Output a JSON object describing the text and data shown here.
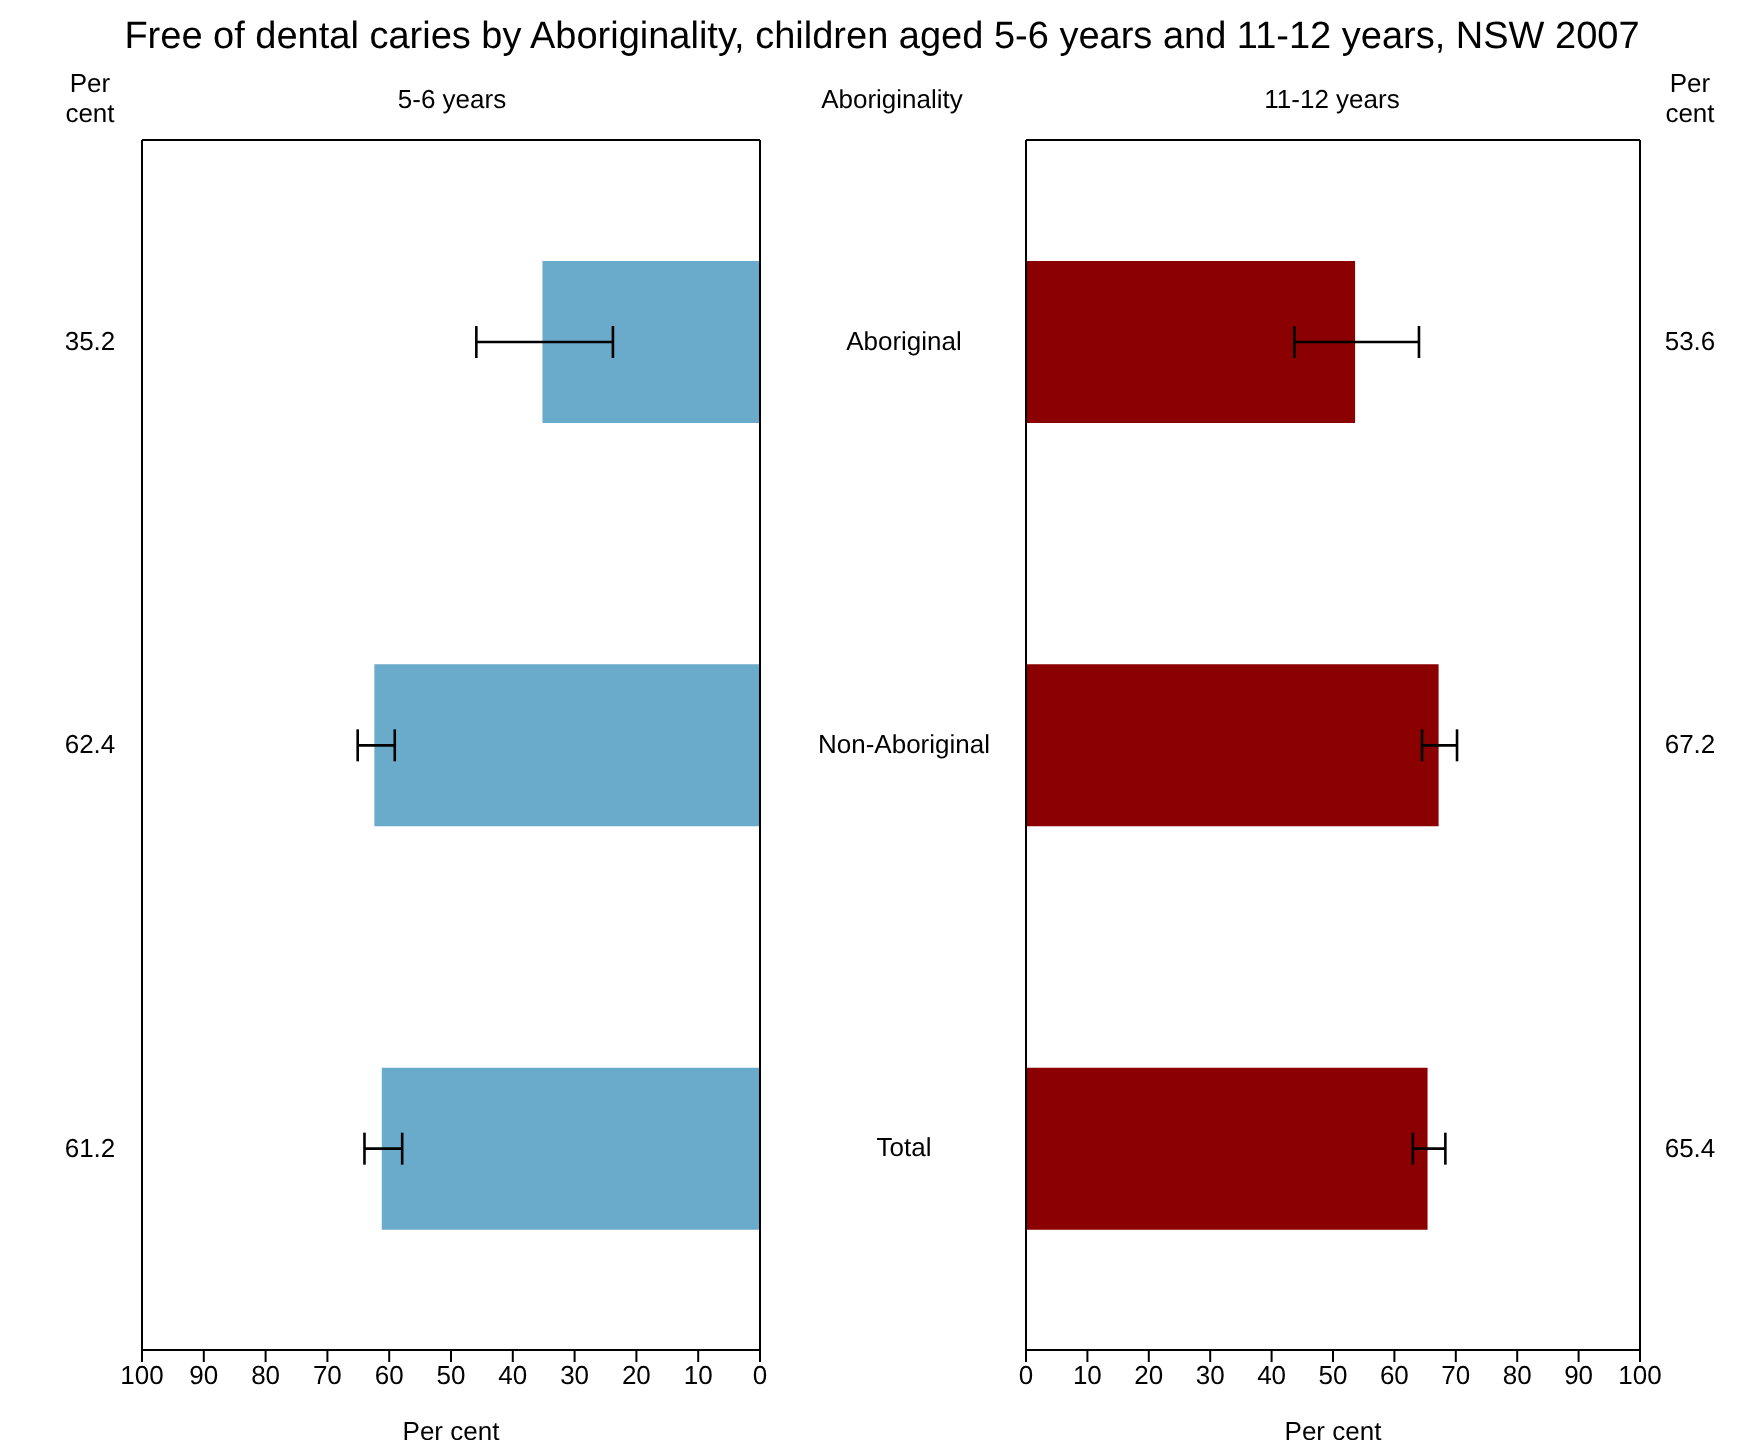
{
  "chart_data": [
    {
      "type": "bar",
      "orientation": "horizontal",
      "title": "Free of dental caries by Aboriginality, children aged 5-6 years and 11-12 years, NSW 2007",
      "subtitle": "5-6 years",
      "xlabel": "Per cent",
      "annotations": [
        "Per cent"
      ],
      "categories": [
        null,
        null,
        null
      ],
      "values": [
        35.2,
        62.4,
        61.2
      ],
      "color": "#6aaacb",
      "errors": [
        [
          23.8,
          45.9
        ],
        [
          59.1,
          65.1
        ],
        [
          57.9,
          64.0
        ]
      ],
      "xlim": [
        100,
        0
      ],
      "xticks": [
        100,
        90,
        80,
        70,
        60,
        50,
        40,
        30,
        20,
        10,
        0
      ],
      "data_labels": true,
      "tick_labels": "x"
    },
    {
      "type": "bar",
      "orientation": "horizontal",
      "subtitle": "11-12 years",
      "ylabel": "Aboriginality",
      "xlabel": "Per cent",
      "annotations": [
        "Per cent"
      ],
      "categories": [
        "Aboriginal",
        "Non-Aboriginal",
        "Total"
      ],
      "values": [
        53.6,
        67.2,
        65.4
      ],
      "color": "#8b0000",
      "errors": [
        [
          43.7,
          64.0
        ],
        [
          64.5,
          70.2
        ],
        [
          63.0,
          68.3
        ]
      ],
      "xlim": [
        0,
        100
      ],
      "xticks": [
        0,
        10,
        20,
        30,
        40,
        50,
        60,
        70,
        80,
        90,
        100
      ],
      "data_labels": true
    }
  ]
}
